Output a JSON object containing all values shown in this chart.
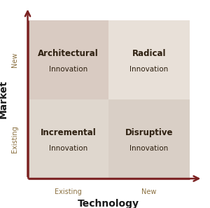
{
  "title_x": "Technology",
  "title_y": "Market",
  "quadrants": [
    {
      "label_bold": "Architectural",
      "label_regular": "Innovation",
      "qx": 0,
      "qy": 1,
      "color": "#d9cbc2"
    },
    {
      "label_bold": "Radical",
      "label_regular": "Innovation",
      "qx": 1,
      "qy": 1,
      "color": "#e8e0d8"
    },
    {
      "label_bold": "Incremental",
      "label_regular": "Innovation",
      "qx": 0,
      "qy": 0,
      "color": "#dfd7ce"
    },
    {
      "label_bold": "Disruptive",
      "label_regular": "Innovation",
      "qx": 1,
      "qy": 0,
      "color": "#d9cfc6"
    }
  ],
  "arrow_color": "#7a2020",
  "x_tick_labels": [
    [
      "Existing",
      0.25
    ],
    [
      "New",
      0.75
    ]
  ],
  "y_tick_labels": [
    [
      "Existing",
      0.25
    ],
    [
      "New",
      0.75
    ]
  ],
  "background_color": "#ffffff",
  "label_bold_fontsize": 8.5,
  "label_regular_fontsize": 7.5,
  "tick_label_fontsize": 7,
  "axis_label_fontsize": 9.5,
  "axis_title_fontsize": 10
}
